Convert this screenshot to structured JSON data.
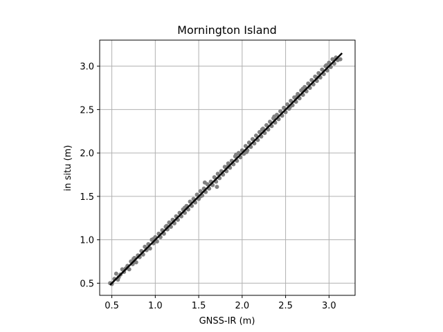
{
  "chart_data": {
    "type": "scatter",
    "title": "Mornington Island",
    "xlabel": "GNSS-IR (m)",
    "ylabel": "in situ (m)",
    "xlim": [
      0.36,
      3.3
    ],
    "ylim": [
      0.36,
      3.3
    ],
    "xticks": [
      0.5,
      1.0,
      1.5,
      2.0,
      2.5,
      3.0
    ],
    "yticks": [
      0.5,
      1.0,
      1.5,
      2.0,
      2.5,
      3.0
    ],
    "xtick_labels": [
      "0.5",
      "1.0",
      "1.5",
      "2.0",
      "2.5",
      "3.0"
    ],
    "ytick_labels": [
      "0.5",
      "1.0",
      "1.5",
      "2.0",
      "2.5",
      "3.0"
    ],
    "grid": true,
    "point_color": "#808080",
    "line_color": "#000000",
    "fit_line": {
      "x": [
        0.48,
        3.15
      ],
      "y": [
        0.48,
        3.15
      ]
    },
    "points": [
      [
        0.48,
        0.5
      ],
      [
        0.5,
        0.49
      ],
      [
        0.53,
        0.55
      ],
      [
        0.55,
        0.61
      ],
      [
        0.57,
        0.54
      ],
      [
        0.6,
        0.6
      ],
      [
        0.62,
        0.66
      ],
      [
        0.64,
        0.63
      ],
      [
        0.66,
        0.67
      ],
      [
        0.68,
        0.7
      ],
      [
        0.7,
        0.66
      ],
      [
        0.72,
        0.75
      ],
      [
        0.74,
        0.72
      ],
      [
        0.76,
        0.79
      ],
      [
        0.78,
        0.74
      ],
      [
        0.8,
        0.82
      ],
      [
        0.82,
        0.8
      ],
      [
        0.84,
        0.87
      ],
      [
        0.86,
        0.83
      ],
      [
        0.88,
        0.92
      ],
      [
        0.9,
        0.88
      ],
      [
        0.92,
        0.95
      ],
      [
        0.94,
        0.9
      ],
      [
        0.96,
        1.0
      ],
      [
        0.98,
        0.96
      ],
      [
        1.0,
        1.03
      ],
      [
        1.02,
        0.98
      ],
      [
        1.04,
        1.07
      ],
      [
        1.06,
        1.03
      ],
      [
        1.08,
        1.11
      ],
      [
        1.1,
        1.07
      ],
      [
        1.12,
        1.15
      ],
      [
        1.14,
        1.12
      ],
      [
        1.16,
        1.2
      ],
      [
        1.18,
        1.15
      ],
      [
        1.2,
        1.23
      ],
      [
        1.22,
        1.19
      ],
      [
        1.24,
        1.27
      ],
      [
        1.26,
        1.23
      ],
      [
        1.28,
        1.31
      ],
      [
        1.3,
        1.27
      ],
      [
        1.32,
        1.35
      ],
      [
        1.34,
        1.31
      ],
      [
        1.36,
        1.39
      ],
      [
        1.38,
        1.35
      ],
      [
        1.4,
        1.44
      ],
      [
        1.42,
        1.39
      ],
      [
        1.44,
        1.47
      ],
      [
        1.46,
        1.43
      ],
      [
        1.48,
        1.52
      ],
      [
        1.5,
        1.47
      ],
      [
        1.52,
        1.56
      ],
      [
        1.54,
        1.51
      ],
      [
        1.56,
        1.59
      ],
      [
        1.58,
        1.55
      ],
      [
        1.6,
        1.64
      ],
      [
        1.62,
        1.59
      ],
      [
        1.64,
        1.67
      ],
      [
        1.66,
        1.63
      ],
      [
        1.68,
        1.72
      ],
      [
        1.7,
        1.67
      ],
      [
        1.72,
        1.76
      ],
      [
        1.74,
        1.71
      ],
      [
        1.76,
        1.79
      ],
      [
        1.78,
        1.75
      ],
      [
        1.8,
        1.84
      ],
      [
        1.82,
        1.79
      ],
      [
        1.84,
        1.88
      ],
      [
        1.86,
        1.83
      ],
      [
        1.88,
        1.91
      ],
      [
        1.9,
        1.87
      ],
      [
        1.92,
        1.96
      ],
      [
        1.94,
        1.91
      ],
      [
        1.96,
        2.0
      ],
      [
        1.98,
        1.95
      ],
      [
        2.0,
        2.03
      ],
      [
        2.02,
        1.99
      ],
      [
        2.04,
        2.08
      ],
      [
        2.06,
        2.03
      ],
      [
        2.08,
        2.12
      ],
      [
        2.1,
        2.07
      ],
      [
        2.12,
        2.16
      ],
      [
        2.14,
        2.11
      ],
      [
        2.16,
        2.2
      ],
      [
        2.18,
        2.15
      ],
      [
        2.2,
        2.24
      ],
      [
        2.22,
        2.19
      ],
      [
        2.24,
        2.28
      ],
      [
        2.26,
        2.23
      ],
      [
        2.28,
        2.32
      ],
      [
        2.3,
        2.27
      ],
      [
        2.32,
        2.36
      ],
      [
        2.34,
        2.31
      ],
      [
        2.36,
        2.4
      ],
      [
        2.38,
        2.35
      ],
      [
        2.4,
        2.44
      ],
      [
        2.42,
        2.39
      ],
      [
        2.44,
        2.48
      ],
      [
        2.46,
        2.43
      ],
      [
        2.48,
        2.52
      ],
      [
        2.5,
        2.47
      ],
      [
        2.52,
        2.56
      ],
      [
        2.54,
        2.51
      ],
      [
        2.56,
        2.6
      ],
      [
        2.58,
        2.55
      ],
      [
        2.6,
        2.64
      ],
      [
        2.62,
        2.59
      ],
      [
        2.64,
        2.68
      ],
      [
        2.66,
        2.63
      ],
      [
        2.68,
        2.72
      ],
      [
        2.7,
        2.67
      ],
      [
        2.72,
        2.76
      ],
      [
        2.74,
        2.71
      ],
      [
        2.76,
        2.8
      ],
      [
        2.78,
        2.75
      ],
      [
        2.8,
        2.84
      ],
      [
        2.82,
        2.79
      ],
      [
        2.84,
        2.88
      ],
      [
        2.86,
        2.83
      ],
      [
        2.88,
        2.92
      ],
      [
        2.9,
        2.87
      ],
      [
        2.92,
        2.96
      ],
      [
        2.94,
        2.91
      ],
      [
        2.96,
        3.0
      ],
      [
        2.98,
        2.95
      ],
      [
        3.0,
        3.04
      ],
      [
        3.02,
        2.99
      ],
      [
        3.04,
        3.08
      ],
      [
        3.06,
        3.03
      ],
      [
        3.08,
        3.1
      ],
      [
        3.1,
        3.07
      ],
      [
        3.13,
        3.08
      ],
      [
        0.58,
        0.57
      ],
      [
        0.75,
        0.78
      ],
      [
        0.98,
        1.01
      ],
      [
        1.13,
        1.16
      ],
      [
        1.34,
        1.37
      ],
      [
        1.52,
        1.5
      ],
      [
        1.57,
        1.66
      ],
      [
        1.71,
        1.61
      ],
      [
        1.93,
        1.98
      ],
      [
        2.05,
        2.01
      ],
      [
        2.23,
        2.27
      ],
      [
        2.37,
        2.42
      ],
      [
        2.55,
        2.53
      ],
      [
        2.7,
        2.74
      ],
      [
        2.86,
        2.87
      ],
      [
        2.97,
        3.01
      ],
      [
        1.21,
        1.21
      ],
      [
        1.45,
        1.46
      ],
      [
        1.83,
        1.84
      ],
      [
        2.63,
        2.65
      ]
    ]
  }
}
